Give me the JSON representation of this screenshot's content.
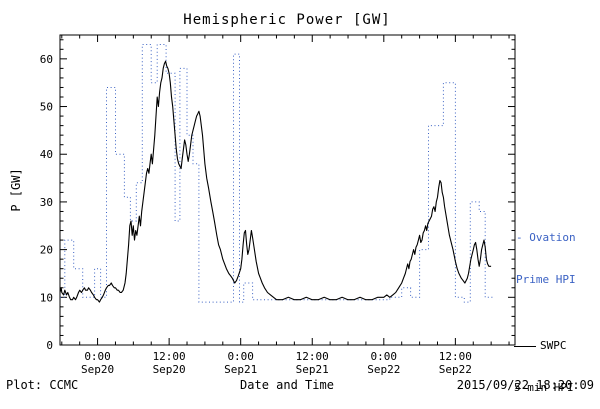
{
  "title": "Hemispheric Power [GW]",
  "footer": {
    "plot_credit": "Plot: CCMC",
    "timestamp": "2015/09/22 18:20:09"
  },
  "legend": {
    "ovation": {
      "swatch": "-",
      "line1": "Ovation",
      "line2": "Prime HPI",
      "color": "#3b62c4"
    },
    "swpc": {
      "line1": "SWPC",
      "line2": "5-min HPI",
      "color": "#000000"
    }
  },
  "chart_data": {
    "type": "line",
    "title": "Hemispheric Power [GW]",
    "xlabel": "Date and Time",
    "ylabel": "P [GW]",
    "x_unit": "hours relative to 2015-09-20 00:00 UT",
    "xlim": [
      -6.3,
      70
    ],
    "ylim": [
      0,
      65
    ],
    "grid": false,
    "legend_position": "right-outside",
    "y_ticks": [
      0,
      10,
      20,
      30,
      40,
      50,
      60
    ],
    "x_ticks": [
      {
        "hour": 0,
        "time": "0:00",
        "date": "Sep20"
      },
      {
        "hour": 12,
        "time": "12:00",
        "date": "Sep20"
      },
      {
        "hour": 24,
        "time": "0:00",
        "date": "Sep21"
      },
      {
        "hour": 36,
        "time": "12:00",
        "date": "Sep21"
      },
      {
        "hour": 48,
        "time": "0:00",
        "date": "Sep22"
      },
      {
        "hour": 60,
        "time": "12:00",
        "date": "Sep22"
      }
    ],
    "series": [
      {
        "name": "Ovation Prime HPI",
        "color": "#3b62c4",
        "style": "dotted-step",
        "points": [
          [
            -6.3,
            10
          ],
          [
            -5.5,
            22
          ],
          [
            -4,
            16
          ],
          [
            -2.5,
            10
          ],
          [
            -0.5,
            16
          ],
          [
            0.5,
            10
          ],
          [
            1.5,
            54
          ],
          [
            3,
            40
          ],
          [
            4.5,
            31
          ],
          [
            5.5,
            26
          ],
          [
            6.5,
            34
          ],
          [
            7.5,
            63
          ],
          [
            9,
            55
          ],
          [
            10,
            63
          ],
          [
            11.5,
            57
          ],
          [
            13,
            26
          ],
          [
            13.8,
            58
          ],
          [
            15,
            44
          ],
          [
            16,
            38
          ],
          [
            17,
            9
          ],
          [
            22.8,
            61
          ],
          [
            23.8,
            9
          ],
          [
            24.5,
            13
          ],
          [
            26,
            9.5
          ],
          [
            30,
            9.5
          ],
          [
            36,
            9.5
          ],
          [
            42,
            9.5
          ],
          [
            47,
            9.5
          ],
          [
            49,
            10
          ],
          [
            51,
            12
          ],
          [
            52.5,
            10
          ],
          [
            54,
            20
          ],
          [
            55.5,
            46
          ],
          [
            58,
            55
          ],
          [
            60,
            10
          ],
          [
            61.5,
            9
          ],
          [
            62.5,
            30
          ],
          [
            64,
            28
          ],
          [
            65,
            10
          ],
          [
            66.3,
            10
          ]
        ]
      },
      {
        "name": "SWPC 5-min HPI",
        "color": "#000000",
        "style": "solid",
        "points": [
          [
            -6.3,
            11
          ],
          [
            -6.1,
            12
          ],
          [
            -6,
            11
          ],
          [
            -5.7,
            10.5
          ],
          [
            -5.5,
            11.5
          ],
          [
            -5.2,
            10.5
          ],
          [
            -5,
            11
          ],
          [
            -4.7,
            10
          ],
          [
            -4.5,
            9.5
          ],
          [
            -4.2,
            9.5
          ],
          [
            -4,
            10
          ],
          [
            -3.7,
            9.5
          ],
          [
            -3.5,
            10
          ],
          [
            -3.2,
            11
          ],
          [
            -3,
            11.5
          ],
          [
            -2.7,
            11
          ],
          [
            -2.5,
            11.5
          ],
          [
            -2.2,
            12
          ],
          [
            -2,
            11.5
          ],
          [
            -1.7,
            11.5
          ],
          [
            -1.5,
            12
          ],
          [
            -1.2,
            11.5
          ],
          [
            -1,
            11
          ],
          [
            -0.7,
            10.5
          ],
          [
            -0.5,
            10
          ],
          [
            -0.2,
            9.5
          ],
          [
            0,
            9.5
          ],
          [
            0.3,
            9
          ],
          [
            0.5,
            9.5
          ],
          [
            0.8,
            10
          ],
          [
            1,
            10.5
          ],
          [
            1.3,
            11.5
          ],
          [
            1.5,
            12
          ],
          [
            1.8,
            12.5
          ],
          [
            2,
            12.5
          ],
          [
            2.3,
            13
          ],
          [
            2.5,
            12.5
          ],
          [
            2.8,
            12
          ],
          [
            3,
            12
          ],
          [
            3.3,
            11.5
          ],
          [
            3.5,
            11.5
          ],
          [
            3.8,
            11
          ],
          [
            4,
            11
          ],
          [
            4.3,
            11.5
          ],
          [
            4.6,
            13
          ],
          [
            4.8,
            15
          ],
          [
            5,
            18
          ],
          [
            5.2,
            21
          ],
          [
            5.4,
            25
          ],
          [
            5.6,
            26
          ],
          [
            5.8,
            23
          ],
          [
            6,
            25
          ],
          [
            6.2,
            22
          ],
          [
            6.4,
            24
          ],
          [
            6.6,
            23
          ],
          [
            6.8,
            25
          ],
          [
            7,
            27
          ],
          [
            7.2,
            25
          ],
          [
            7.4,
            28
          ],
          [
            7.6,
            30
          ],
          [
            7.8,
            32
          ],
          [
            8,
            34
          ],
          [
            8.2,
            36
          ],
          [
            8.4,
            37
          ],
          [
            8.6,
            36
          ],
          [
            8.8,
            38
          ],
          [
            9,
            40
          ],
          [
            9.2,
            38
          ],
          [
            9.4,
            41
          ],
          [
            9.6,
            44
          ],
          [
            9.8,
            48
          ],
          [
            10,
            52
          ],
          [
            10.2,
            50
          ],
          [
            10.4,
            53
          ],
          [
            10.6,
            55
          ],
          [
            10.8,
            56
          ],
          [
            11,
            58
          ],
          [
            11.2,
            59
          ],
          [
            11.4,
            59.5
          ],
          [
            11.6,
            58.5
          ],
          [
            11.8,
            58
          ],
          [
            12,
            57
          ],
          [
            12.2,
            55
          ],
          [
            12.4,
            52
          ],
          [
            12.6,
            50
          ],
          [
            12.8,
            47
          ],
          [
            13,
            44
          ],
          [
            13.2,
            41
          ],
          [
            13.4,
            39
          ],
          [
            13.6,
            38
          ],
          [
            13.8,
            37.5
          ],
          [
            14,
            37
          ],
          [
            14.2,
            39
          ],
          [
            14.4,
            41
          ],
          [
            14.6,
            43
          ],
          [
            14.8,
            42
          ],
          [
            15,
            40
          ],
          [
            15.2,
            38.5
          ],
          [
            15.4,
            40
          ],
          [
            15.6,
            42
          ],
          [
            15.8,
            44
          ],
          [
            16,
            45
          ],
          [
            16.2,
            46
          ],
          [
            16.4,
            47
          ],
          [
            16.6,
            48
          ],
          [
            16.8,
            48.5
          ],
          [
            17,
            49
          ],
          [
            17.2,
            48
          ],
          [
            17.4,
            46
          ],
          [
            17.6,
            44
          ],
          [
            17.8,
            41
          ],
          [
            18,
            38
          ],
          [
            18.3,
            35
          ],
          [
            18.6,
            33
          ],
          [
            19,
            30
          ],
          [
            19.3,
            28
          ],
          [
            19.6,
            26
          ],
          [
            20,
            23
          ],
          [
            20.3,
            21
          ],
          [
            20.6,
            20
          ],
          [
            21,
            18
          ],
          [
            21.3,
            17
          ],
          [
            21.6,
            16
          ],
          [
            22,
            15
          ],
          [
            22.3,
            14.5
          ],
          [
            22.6,
            14
          ],
          [
            23,
            13
          ],
          [
            23.3,
            13.5
          ],
          [
            23.6,
            14.5
          ],
          [
            24,
            16
          ],
          [
            24.2,
            18
          ],
          [
            24.4,
            21
          ],
          [
            24.6,
            23.5
          ],
          [
            24.8,
            24
          ],
          [
            25,
            21
          ],
          [
            25.2,
            19
          ],
          [
            25.4,
            20
          ],
          [
            25.6,
            22
          ],
          [
            25.8,
            24
          ],
          [
            26,
            22.5
          ],
          [
            26.3,
            20
          ],
          [
            26.6,
            17.5
          ],
          [
            27,
            15
          ],
          [
            27.3,
            14
          ],
          [
            27.6,
            13
          ],
          [
            28,
            12
          ],
          [
            28.5,
            11
          ],
          [
            29,
            10.5
          ],
          [
            29.5,
            10
          ],
          [
            30,
            9.5
          ],
          [
            31,
            9.5
          ],
          [
            32,
            10
          ],
          [
            33,
            9.5
          ],
          [
            34,
            9.5
          ],
          [
            35,
            10
          ],
          [
            36,
            9.5
          ],
          [
            37,
            9.5
          ],
          [
            38,
            10
          ],
          [
            39,
            9.5
          ],
          [
            40,
            9.5
          ],
          [
            41,
            10
          ],
          [
            42,
            9.5
          ],
          [
            43,
            9.5
          ],
          [
            44,
            10
          ],
          [
            45,
            9.5
          ],
          [
            46,
            9.5
          ],
          [
            47,
            10
          ],
          [
            48,
            10
          ],
          [
            48.5,
            10.5
          ],
          [
            49,
            10
          ],
          [
            49.5,
            10.5
          ],
          [
            50,
            11
          ],
          [
            50.5,
            12
          ],
          [
            51,
            13
          ],
          [
            51.3,
            14
          ],
          [
            51.6,
            15
          ],
          [
            52,
            17
          ],
          [
            52.2,
            16
          ],
          [
            52.4,
            17.5
          ],
          [
            52.6,
            18
          ],
          [
            52.8,
            19
          ],
          [
            53,
            20
          ],
          [
            53.2,
            19
          ],
          [
            53.4,
            20.5
          ],
          [
            53.6,
            21
          ],
          [
            53.8,
            22
          ],
          [
            54,
            23
          ],
          [
            54.2,
            21.5
          ],
          [
            54.4,
            22
          ],
          [
            54.6,
            23.5
          ],
          [
            54.8,
            24
          ],
          [
            55,
            25
          ],
          [
            55.2,
            24
          ],
          [
            55.4,
            25.5
          ],
          [
            55.6,
            26
          ],
          [
            55.8,
            26.5
          ],
          [
            56,
            27
          ],
          [
            56.2,
            28.5
          ],
          [
            56.4,
            29
          ],
          [
            56.6,
            28
          ],
          [
            56.8,
            30
          ],
          [
            57,
            31
          ],
          [
            57.2,
            33
          ],
          [
            57.4,
            34.5
          ],
          [
            57.6,
            34
          ],
          [
            57.8,
            32
          ],
          [
            58,
            31
          ],
          [
            58.2,
            29
          ],
          [
            58.4,
            27.5
          ],
          [
            58.6,
            26
          ],
          [
            58.8,
            24.5
          ],
          [
            59,
            23
          ],
          [
            59.3,
            21.5
          ],
          [
            59.6,
            20
          ],
          [
            60,
            17.5
          ],
          [
            60.3,
            16
          ],
          [
            60.6,
            15
          ],
          [
            61,
            14
          ],
          [
            61.3,
            13.5
          ],
          [
            61.6,
            13
          ],
          [
            62,
            14
          ],
          [
            62.2,
            15
          ],
          [
            62.4,
            16.5
          ],
          [
            62.6,
            18
          ],
          [
            62.8,
            19
          ],
          [
            63,
            20
          ],
          [
            63.2,
            21
          ],
          [
            63.4,
            21.5
          ],
          [
            63.6,
            20
          ],
          [
            63.8,
            18
          ],
          [
            64,
            16.5
          ],
          [
            64.2,
            18
          ],
          [
            64.4,
            20
          ],
          [
            64.6,
            21
          ],
          [
            64.8,
            22
          ],
          [
            65,
            20.5
          ],
          [
            65.2,
            18
          ],
          [
            65.4,
            17
          ],
          [
            65.6,
            16.5
          ],
          [
            66,
            16.5
          ]
        ]
      }
    ]
  }
}
